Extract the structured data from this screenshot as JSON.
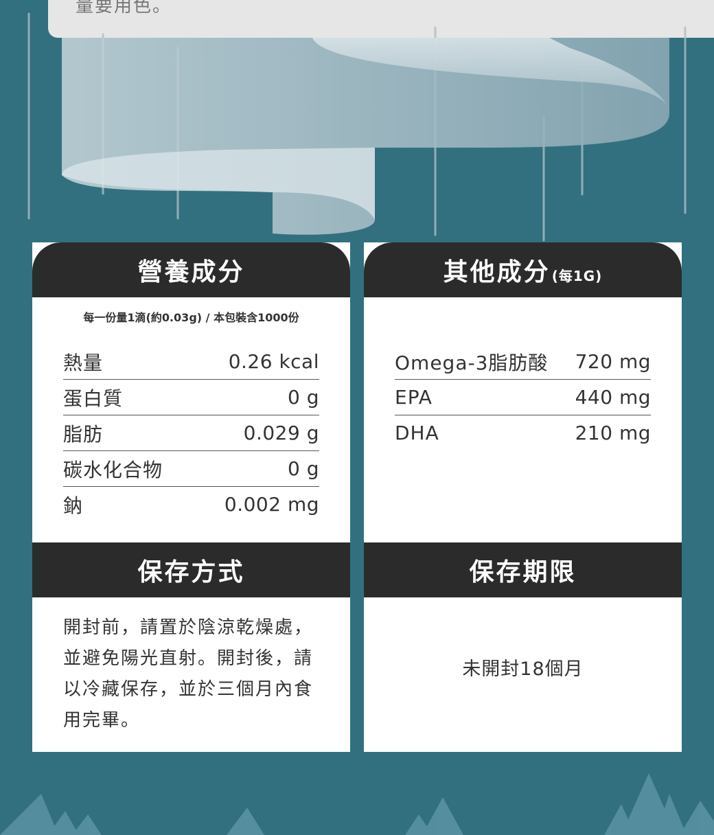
{
  "top_card": {
    "text": "量要用色。"
  },
  "nutrition": {
    "title": "營養成分",
    "serving_note": "每一份量1滴(約0.03g) / 本包裝含1000份",
    "rows": [
      {
        "label": "熱量",
        "value": "0.26 kcal"
      },
      {
        "label": "蛋白質",
        "value": "0 g"
      },
      {
        "label": "脂肪",
        "value": "0.029 g"
      },
      {
        "label": "碳水化合物",
        "value": "0 g"
      },
      {
        "label": "鈉",
        "value": "0.002 mg"
      }
    ]
  },
  "other": {
    "title": "其他成分",
    "title_sub": "(每1G)",
    "rows": [
      {
        "label": "Omega-3脂肪酸",
        "value": "720 mg"
      },
      {
        "label": "EPA",
        "value": "440 mg"
      },
      {
        "label": "DHA",
        "value": "210 mg"
      }
    ]
  },
  "storage": {
    "title": "保存方式",
    "text": "開封前，請置於陰涼乾燥處，並避免陽光直射。開封後，請以冷藏保存，並於三個月內食用完畢。"
  },
  "shelf_life": {
    "title": "保存期限",
    "text": "未開封18個月"
  },
  "colors": {
    "background": "#32707f",
    "panel_header": "#2b2b2b",
    "panel_body": "#ffffff",
    "text": "#333333"
  }
}
